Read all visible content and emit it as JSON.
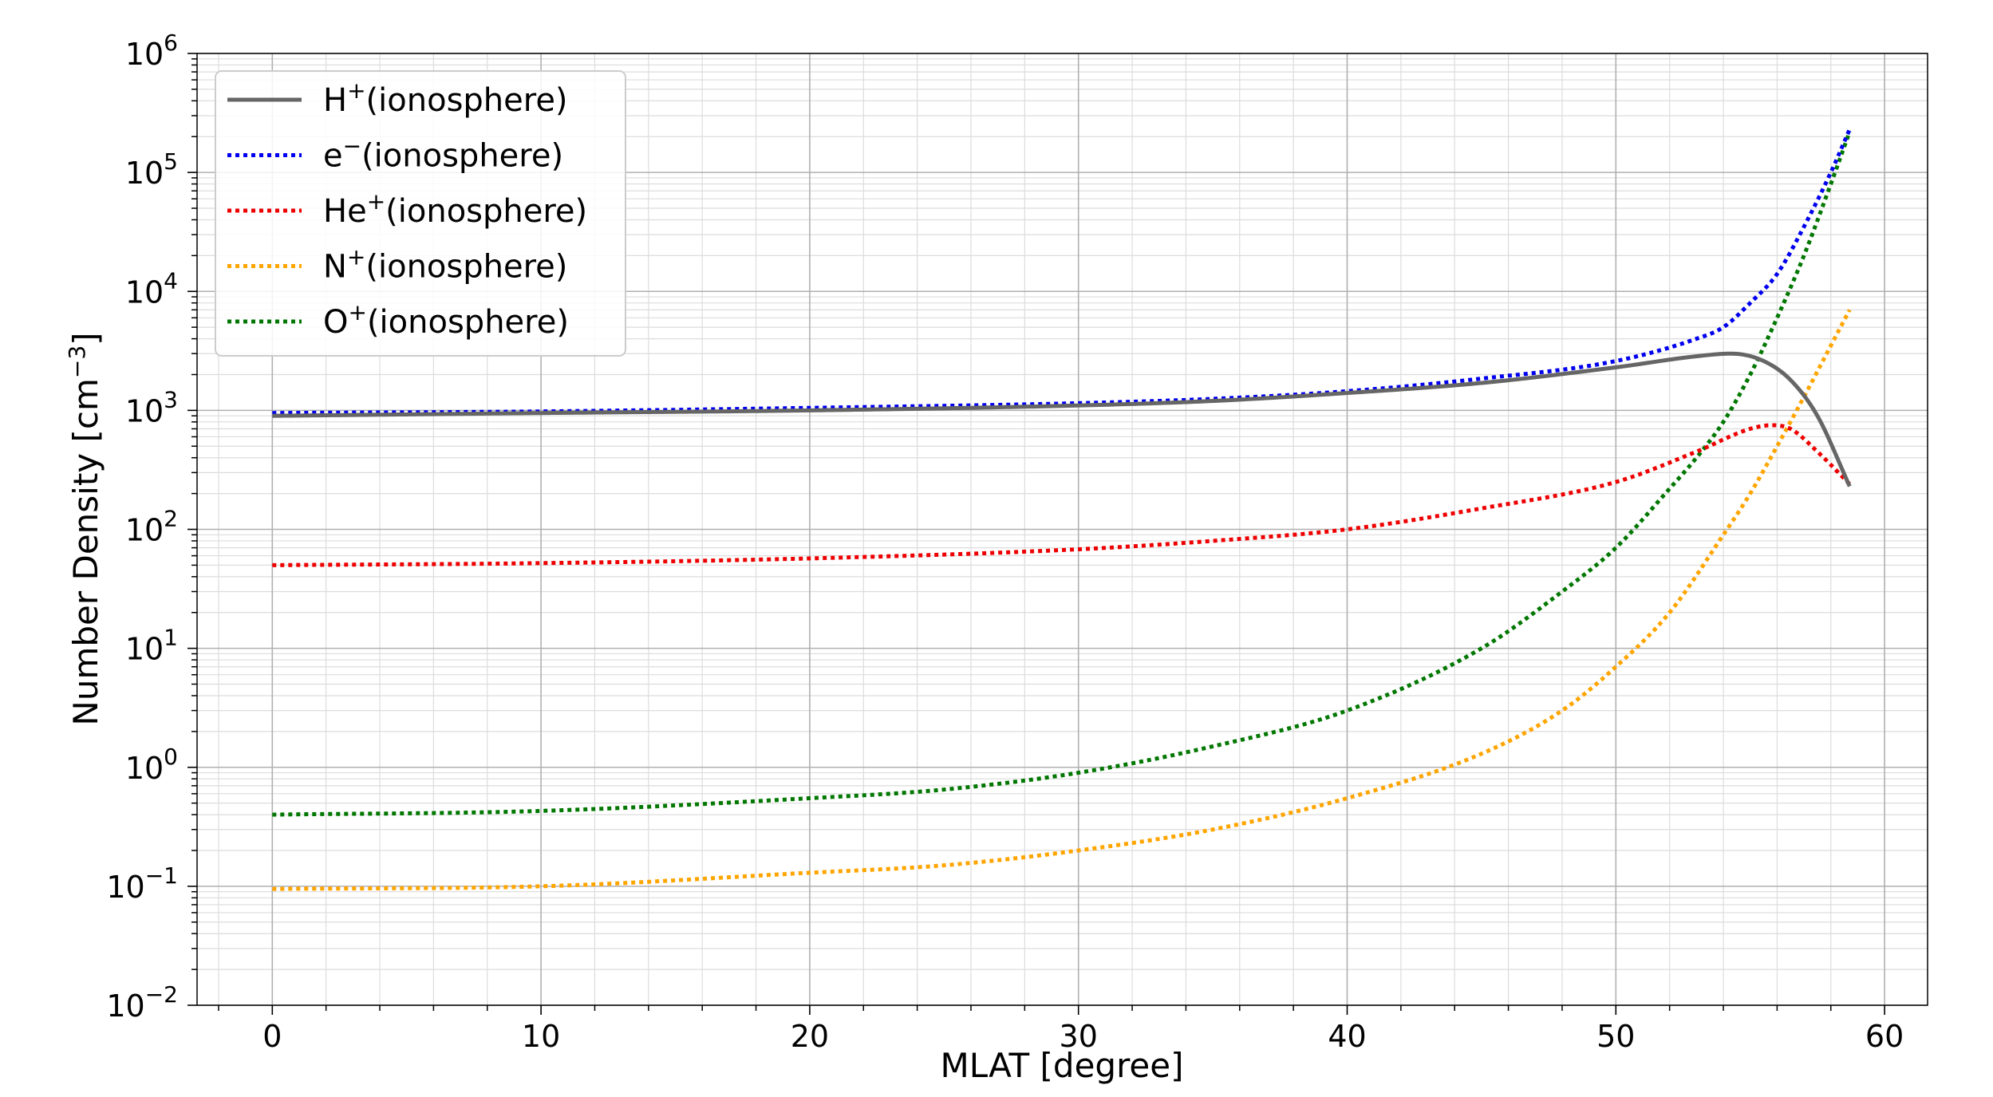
{
  "chart_data": {
    "type": "line",
    "xlabel": "MLAT [degree]",
    "ylabel_main": "Number Density [cm",
    "ylabel_sup": "−3",
    "ylabel_close": "]",
    "xscale": "linear",
    "yscale": "log",
    "xlim": [
      -2.8,
      61.6
    ],
    "ylim": [
      0.01,
      1000000
    ],
    "xticks": [
      0,
      10,
      20,
      30,
      40,
      50,
      60
    ],
    "yticks": [
      {
        "value": 0.01,
        "base": "10",
        "exp": "−2"
      },
      {
        "value": 0.1,
        "base": "10",
        "exp": "−1"
      },
      {
        "value": 1,
        "base": "10",
        "exp": "0"
      },
      {
        "value": 10,
        "base": "10",
        "exp": "1"
      },
      {
        "value": 100,
        "base": "10",
        "exp": "2"
      },
      {
        "value": 1000,
        "base": "10",
        "exp": "3"
      },
      {
        "value": 10000,
        "base": "10",
        "exp": "4"
      },
      {
        "value": 100000,
        "base": "10",
        "exp": "5"
      },
      {
        "value": 1000000,
        "base": "10",
        "exp": "6"
      }
    ],
    "grid": true,
    "legend_position": "top-left",
    "series": [
      {
        "name": "H",
        "name_sup": "+",
        "name_suffix": "(ionosphere)",
        "color": "#666666",
        "style": "solid",
        "x": [
          0,
          10,
          20,
          30,
          35,
          40,
          45,
          50,
          53,
          54.3,
          55.5,
          56.5,
          57.5,
          58.7
        ],
        "y": [
          900,
          950,
          1000,
          1100,
          1200,
          1400,
          1700,
          2300,
          2850,
          3000,
          2600,
          1800,
          900,
          230
        ]
      },
      {
        "name": "e",
        "name_sup": "−",
        "name_suffix": "(ionosphere)",
        "color": "#0000ee",
        "style": "dotted",
        "x": [
          0,
          10,
          20,
          30,
          35,
          40,
          45,
          50,
          53,
          54,
          55,
          56,
          57,
          58,
          58.7
        ],
        "y": [
          950,
          980,
          1050,
          1150,
          1250,
          1450,
          1850,
          2600,
          4000,
          5000,
          8000,
          14000,
          35000,
          100000,
          230000
        ]
      },
      {
        "name": "He",
        "name_sup": "+",
        "name_suffix": "(ionosphere)",
        "color": "#ee0000",
        "style": "dotted",
        "x": [
          0,
          10,
          20,
          30,
          35,
          40,
          45,
          50,
          53,
          55,
          55.8,
          56.5,
          57.5,
          58.7
        ],
        "y": [
          50,
          52,
          57,
          68,
          80,
          100,
          150,
          250,
          450,
          700,
          750,
          700,
          450,
          240
        ]
      },
      {
        "name": "N",
        "name_sup": "+",
        "name_suffix": "(ionosphere)",
        "color": "#ffa500",
        "style": "dotted",
        "x": [
          0,
          10,
          20,
          25,
          30,
          35,
          40,
          45,
          48,
          50,
          52,
          54,
          55,
          56,
          57,
          58,
          58.7
        ],
        "y": [
          0.095,
          0.1,
          0.13,
          0.15,
          0.2,
          0.3,
          0.55,
          1.3,
          3,
          7,
          20,
          90,
          200,
          500,
          1300,
          3500,
          7000
        ]
      },
      {
        "name": "O",
        "name_sup": "+",
        "name_suffix": "(ionosphere)",
        "color": "#007700",
        "style": "dotted",
        "x": [
          0,
          10,
          20,
          25,
          30,
          35,
          40,
          45,
          48,
          50,
          52,
          53,
          54,
          55,
          56,
          57,
          58,
          58.7
        ],
        "y": [
          0.4,
          0.43,
          0.55,
          0.65,
          0.9,
          1.5,
          3,
          10,
          30,
          70,
          220,
          400,
          800,
          2000,
          6000,
          20000,
          80000,
          220000
        ]
      }
    ]
  }
}
